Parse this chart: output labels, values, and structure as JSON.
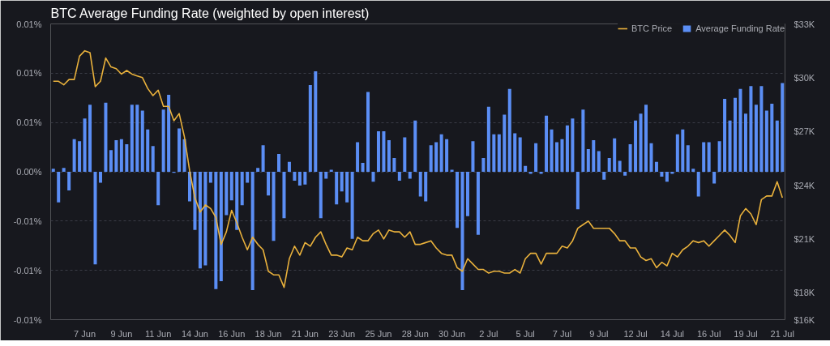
{
  "chart_data": {
    "type": "bar",
    "title": "BTC Average Funding Rate  (weighted by open interest)",
    "categories": [
      null,
      null,
      null,
      null,
      null,
      null,
      "7 Jun",
      null,
      null,
      null,
      null,
      null,
      null,
      "9 Jun",
      null,
      null,
      null,
      null,
      null,
      null,
      "11 Jun",
      null,
      null,
      null,
      null,
      null,
      null,
      "14 Jun",
      null,
      null,
      null,
      null,
      null,
      null,
      "16 Jun",
      null,
      null,
      null,
      null,
      null,
      null,
      "18 Jun",
      null,
      null,
      null,
      null,
      null,
      null,
      "21 Jun",
      null,
      null,
      null,
      null,
      null,
      null,
      "23 Jun",
      null,
      null,
      null,
      null,
      null,
      null,
      "25 Jun",
      null,
      null,
      null,
      null,
      null,
      null,
      "28 Jun",
      null,
      null,
      null,
      null,
      null,
      null,
      "30 Jun",
      null,
      null,
      null,
      null,
      null,
      null,
      "2 Jul",
      null,
      null,
      null,
      null,
      null,
      null,
      "5 Jul",
      null,
      null,
      null,
      null,
      null,
      null,
      "7 Jul",
      null,
      null,
      null,
      null,
      null,
      null,
      "9 Jul",
      null,
      null,
      null,
      null,
      null,
      null,
      "12 Jul",
      null,
      null,
      null,
      null,
      null,
      null,
      "14 Jul",
      null,
      null,
      null,
      null,
      null,
      null,
      "16 Jul",
      null,
      null,
      null,
      null,
      null,
      null,
      "19 Jul",
      null,
      null,
      null,
      null,
      null,
      null,
      "21 Jul"
    ],
    "series": [
      {
        "name": "BTC Price",
        "type": "line",
        "axis": "y2",
        "color": "#e9b13c",
        "values": [
          29800,
          29800,
          29600,
          29900,
          29900,
          31200,
          31500,
          31400,
          29500,
          29800,
          31100,
          30600,
          30500,
          30200,
          30400,
          30200,
          30100,
          30000,
          29400,
          29000,
          29300,
          28400,
          28400,
          27600,
          28000,
          26700,
          24800,
          23300,
          22500,
          22900,
          22700,
          22200,
          20700,
          21400,
          22600,
          21900,
          21100,
          20400,
          21100,
          20700,
          20400,
          19200,
          19000,
          19000,
          18300,
          19900,
          20600,
          20100,
          20800,
          20600,
          21100,
          21400,
          20700,
          20100,
          20100,
          20000,
          20500,
          20400,
          21100,
          20900,
          20900,
          21300,
          21500,
          21000,
          21500,
          21400,
          21400,
          21100,
          21400,
          20700,
          20700,
          20800,
          20900,
          20500,
          20200,
          20100,
          20100,
          19400,
          19200,
          19900,
          19600,
          19300,
          19300,
          19100,
          19200,
          19200,
          19100,
          19100,
          19300,
          19100,
          19900,
          20200,
          20200,
          19600,
          20200,
          20200,
          20200,
          20600,
          20500,
          20900,
          21600,
          21800,
          22000,
          21600,
          21600,
          21600,
          21600,
          21300,
          20900,
          20900,
          20500,
          20500,
          20000,
          19800,
          19900,
          19400,
          19700,
          19500,
          20200,
          20000,
          20400,
          20600,
          20900,
          20800,
          20900,
          20600,
          20900,
          21200,
          21500,
          21200,
          20800,
          22300,
          22700,
          22400,
          21800,
          23200,
          23400,
          23400,
          24200,
          23300
        ]
      },
      {
        "name": "Average Funding Rate",
        "color": "#5b8ef5",
        "values": [
          0.0003,
          -0.0031,
          0.0004,
          -0.0019,
          0.0033,
          0.0031,
          0.0054,
          0.0068,
          -0.0094,
          -0.0011,
          0.007,
          0.0022,
          0.0032,
          0.0033,
          0.0028,
          0.0068,
          0.0068,
          0.0062,
          0.0043,
          0.0026,
          -0.0034,
          0.0063,
          0.0078,
          -0.0001,
          0.0044,
          0.0033,
          -0.003,
          -0.0059,
          -0.0098,
          -0.0095,
          -0.0011,
          -0.0119,
          -0.0111,
          -0.0044,
          -0.0029,
          -0.0059,
          -0.0034,
          -0.0011,
          -0.012,
          0.0004,
          0.0027,
          -0.0024,
          -0.007,
          0.0018,
          -0.0047,
          0.001,
          -0.0009,
          -0.0014,
          -0.0013,
          0.0088,
          0.0102,
          -0.0047,
          -0.0007,
          0.0002,
          -0.0033,
          -0.002,
          -0.0031,
          -0.0068,
          0.003,
          0.0009,
          0.0081,
          -0.001,
          0.0041,
          0.0041,
          0.0032,
          0.0014,
          -0.0009,
          0.0035,
          -0.0007,
          0.0052,
          -0.0025,
          -0.003,
          0.0027,
          0.003,
          0.0038,
          0.0033,
          0.0002,
          -0.0057,
          -0.012,
          -0.0045,
          0.0031,
          -0.0064,
          0.0014,
          0.0066,
          0.0038,
          0.0038,
          0.0058,
          0.0084,
          0.0039,
          0.0035,
          0.0006,
          -0.0002,
          0.0029,
          -0.0002,
          0.0057,
          0.0043,
          0.003,
          0.0033,
          0.0047,
          0.0054,
          -0.0038,
          0.0063,
          0.0023,
          0.0032,
          0.0021,
          -0.0008,
          0.0014,
          0.0034,
          0.0011,
          -0.0004,
          0.0028,
          0.0052,
          0.0059,
          0.0068,
          0.0029,
          0.001,
          -0.0005,
          -0.001,
          -0.0002,
          0.0038,
          0.0043,
          0.0027,
          0.0003,
          -0.0025,
          0.003,
          0.003,
          -0.0012,
          0.0031,
          0.0074,
          0.0052,
          0.0075,
          0.0084,
          0.0059,
          0.0087,
          0.0068,
          0.0087,
          0.0062,
          0.0069,
          0.0052,
          0.009
        ]
      }
    ],
    "ylim": [
      -0.015,
      0.015
    ],
    "yticks": [
      {
        "value": -0.015,
        "label": "-0.01%"
      },
      {
        "value": -0.01,
        "label": "-0.01%"
      },
      {
        "value": -0.005,
        "label": "-0.01%"
      },
      {
        "value": 0,
        "label": "0.00%"
      },
      {
        "value": 0.005,
        "label": "0.01%"
      },
      {
        "value": 0.01,
        "label": "0.01%"
      },
      {
        "value": 0.015,
        "label": "0.01%"
      }
    ],
    "y2lim": [
      16500,
      33000
    ],
    "y2ticks": [
      {
        "value": 16500,
        "label": "$16K"
      },
      {
        "value": 18000,
        "label": "$18K"
      },
      {
        "value": 21000,
        "label": "$21K"
      },
      {
        "value": 24000,
        "label": "$24K"
      },
      {
        "value": 27000,
        "label": "$27K"
      },
      {
        "value": 30000,
        "label": "$30K"
      },
      {
        "value": 33000,
        "label": "$33K"
      }
    ],
    "grid": "y",
    "legend": "top right",
    "marker": "none",
    "line_style": "solid"
  }
}
